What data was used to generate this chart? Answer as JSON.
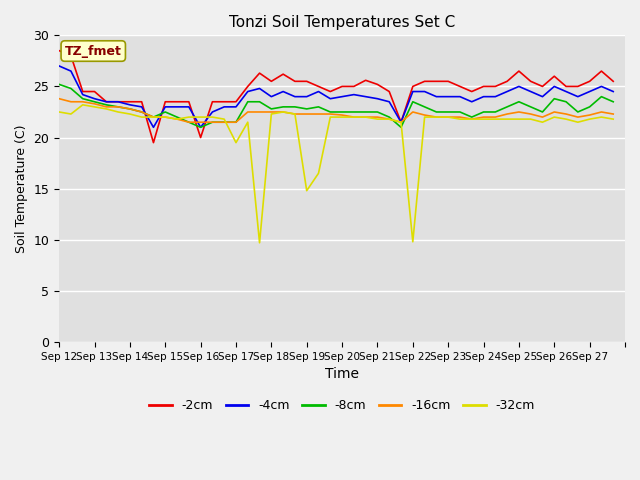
{
  "title": "Tonzi Soil Temperatures Set C",
  "xlabel": "Time",
  "ylabel": "Soil Temperature (C)",
  "annotation": "TZ_fmet",
  "ylim": [
    0,
    30
  ],
  "yticks": [
    0,
    5,
    10,
    15,
    20,
    25,
    30
  ],
  "x_labels": [
    "Sep 12",
    "Sep 13",
    "Sep 14",
    "Sep 15",
    "Sep 16",
    "Sep 17",
    "Sep 18",
    "Sep 19",
    "Sep 20",
    "Sep 21",
    "Sep 22",
    "Sep 23",
    "Sep 24",
    "Sep 25",
    "Sep 26",
    "Sep 27"
  ],
  "colors": {
    "-2cm": "#ee0000",
    "-4cm": "#0000ee",
    "-8cm": "#00bb00",
    "-16cm": "#ff8800",
    "-32cm": "#dddd00"
  },
  "background_color": "#e0e0e0",
  "fig_facecolor": "#f0f0f0",
  "series": {
    "-2cm": [
      28.5,
      28.0,
      24.5,
      24.5,
      23.5,
      23.5,
      23.5,
      23.5,
      19.5,
      23.5,
      23.5,
      23.5,
      20.0,
      23.5,
      23.5,
      23.5,
      25.0,
      26.3,
      25.5,
      26.2,
      25.5,
      25.5,
      25.0,
      24.5,
      25.0,
      25.0,
      25.6,
      25.2,
      24.5,
      21.5,
      25.0,
      25.5,
      25.5,
      25.5,
      25.0,
      24.5,
      25.0,
      25.0,
      25.5,
      26.5,
      25.5,
      25.0,
      26.0,
      25.0,
      25.0,
      25.5,
      26.5,
      25.5
    ],
    "-4cm": [
      27.0,
      26.5,
      24.2,
      23.8,
      23.5,
      23.5,
      23.2,
      23.0,
      21.0,
      23.0,
      23.0,
      23.0,
      21.0,
      22.5,
      23.0,
      23.0,
      24.5,
      24.8,
      24.0,
      24.5,
      24.0,
      24.0,
      24.5,
      23.8,
      24.0,
      24.2,
      24.0,
      23.8,
      23.5,
      21.5,
      24.5,
      24.5,
      24.0,
      24.0,
      24.0,
      23.5,
      24.0,
      24.0,
      24.5,
      25.0,
      24.5,
      24.0,
      25.0,
      24.5,
      24.0,
      24.5,
      25.0,
      24.5
    ],
    "-8cm": [
      25.2,
      24.8,
      23.8,
      23.5,
      23.2,
      23.0,
      22.8,
      22.5,
      22.0,
      22.5,
      22.0,
      21.5,
      21.0,
      21.5,
      21.5,
      21.5,
      23.5,
      23.5,
      22.8,
      23.0,
      23.0,
      22.8,
      23.0,
      22.5,
      22.5,
      22.5,
      22.5,
      22.5,
      22.0,
      21.0,
      23.5,
      23.0,
      22.5,
      22.5,
      22.5,
      22.0,
      22.5,
      22.5,
      23.0,
      23.5,
      23.0,
      22.5,
      23.8,
      23.5,
      22.5,
      23.0,
      24.0,
      23.5
    ],
    "-16cm": [
      23.8,
      23.5,
      23.5,
      23.3,
      23.0,
      23.0,
      22.8,
      22.5,
      22.0,
      22.0,
      21.8,
      21.5,
      21.5,
      21.5,
      21.5,
      21.5,
      22.5,
      22.5,
      22.5,
      22.5,
      22.3,
      22.3,
      22.3,
      22.3,
      22.2,
      22.0,
      22.0,
      22.0,
      21.8,
      21.5,
      22.5,
      22.2,
      22.0,
      22.0,
      22.0,
      21.8,
      22.0,
      22.0,
      22.3,
      22.5,
      22.3,
      22.0,
      22.5,
      22.3,
      22.0,
      22.2,
      22.5,
      22.3
    ],
    "-32cm": [
      22.5,
      22.3,
      23.2,
      23.0,
      22.8,
      22.5,
      22.3,
      22.0,
      22.0,
      22.0,
      21.8,
      22.0,
      22.0,
      22.0,
      21.8,
      19.5,
      21.5,
      9.7,
      22.3,
      22.5,
      22.3,
      14.8,
      16.5,
      22.0,
      22.0,
      22.0,
      22.0,
      21.8,
      21.8,
      21.5,
      9.8,
      22.0,
      22.0,
      22.0,
      21.8,
      21.8,
      21.8,
      21.8,
      21.8,
      21.8,
      21.8,
      21.5,
      22.0,
      21.8,
      21.5,
      21.8,
      22.0,
      21.8
    ]
  }
}
